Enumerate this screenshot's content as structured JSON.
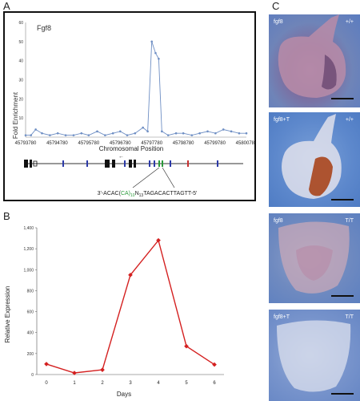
{
  "panel_labels": {
    "a": "A",
    "b": "B",
    "c": "C"
  },
  "panelA": {
    "gene_label": "Fgf8",
    "sequence_prefix": "3'-ACAC(",
    "sequence_repeat": "CA)",
    "sequence_repeat_sub": "10",
    "sequence_mid": "N",
    "sequence_mid_sub": "13",
    "sequence_suffix": "TAGACACTTAGTT-5'",
    "arrow_glyph": "←"
  },
  "panelC": {
    "photos": [
      {
        "label": "fgf8",
        "genotype": "+/+"
      },
      {
        "label": "fgf8+T",
        "genotype": "+/+"
      },
      {
        "label": "fgf8",
        "genotype": "T/T"
      },
      {
        "label": "fgf8+T",
        "genotype": "T/T"
      }
    ]
  },
  "colors": {
    "lineA": "#6f8fc4",
    "lineB": "#d42020",
    "frame": "#111111"
  },
  "chart_data": [
    {
      "type": "line",
      "ylabel": "Fold Enrichment",
      "xlabel": "Chromosomal Position",
      "ylim": [
        0,
        60
      ],
      "yticks": [
        10,
        20,
        30,
        40,
        50,
        60
      ],
      "x_tick_labels": [
        "45793780",
        "45794780",
        "45795780",
        "45796780",
        "45797780",
        "45798780",
        "45799780",
        "45800780"
      ],
      "xlim": [
        45793780,
        45800780
      ],
      "series": [
        {
          "x": [
            45793780,
            45793950,
            45794100,
            45794300,
            45794550,
            45794800,
            45795050,
            45795300,
            45795550,
            45795780,
            45796050,
            45796300,
            45796550,
            45796780,
            45797000,
            45797250,
            45797500,
            45797650,
            45797780,
            45797900,
            45798000,
            45798100,
            45798300,
            45798550,
            45798780,
            45799050,
            45799300,
            45799550,
            45799800,
            45800050,
            45800300,
            45800550,
            45800780
          ],
          "values": [
            1,
            1,
            4,
            2,
            1,
            2,
            1,
            1,
            2,
            1,
            3,
            1,
            2,
            3,
            1,
            2,
            5,
            3,
            50,
            44,
            41,
            3,
            1,
            2,
            2,
            1,
            2,
            3,
            2,
            4,
            3,
            2,
            2
          ]
        }
      ]
    },
    {
      "type": "line",
      "ylabel": "Relative Expression",
      "xlabel": "Days",
      "categories": [
        "0",
        "1",
        "2",
        "3",
        "4",
        "5",
        "6"
      ],
      "ylim": [
        0,
        1400
      ],
      "yticks": [
        "0",
        "200",
        "400",
        "600",
        "800",
        "1,000",
        "1,200",
        "1,400"
      ],
      "series": [
        {
          "values": [
            100,
            15,
            45,
            950,
            1280,
            270,
            95
          ]
        }
      ]
    }
  ]
}
